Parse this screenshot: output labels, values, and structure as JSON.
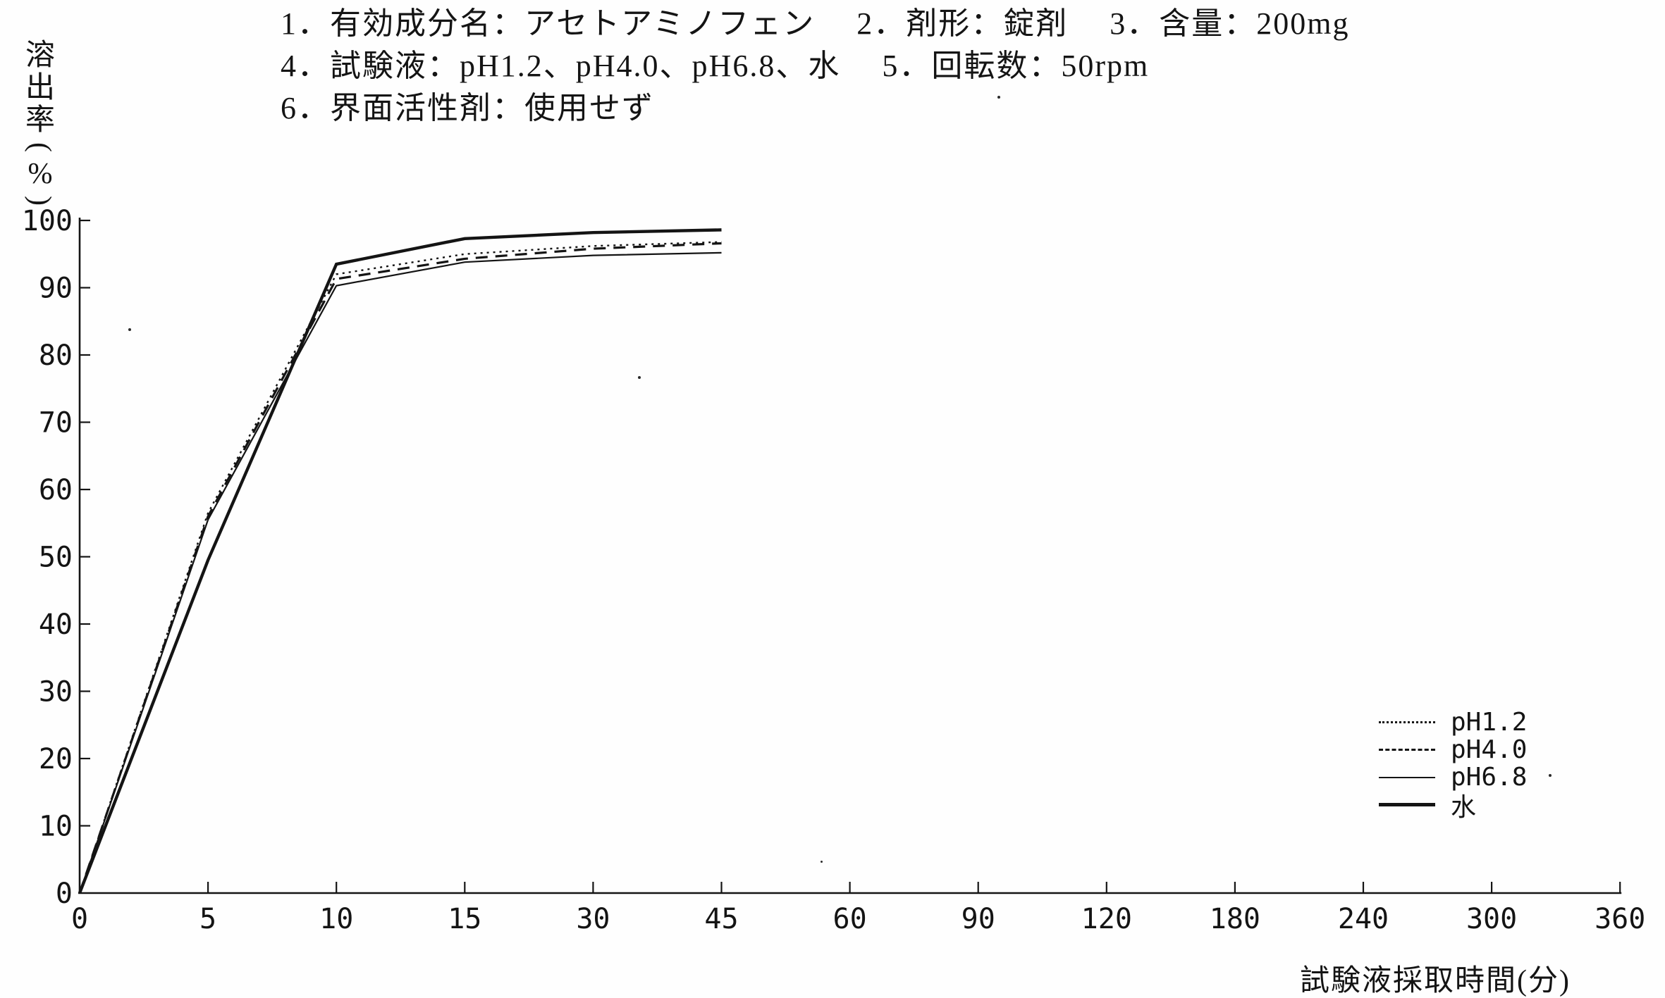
{
  "header": {
    "line1": "1．有効成分名：アセトアミノフェン　 2．剤形：錠剤　 3．含量：200mg",
    "line2": "4．試験液：pH1.2、pH4.0、pH6.8、水　 5．回転数：50rpm",
    "line3": "6．界面活性剤：使用せず"
  },
  "y_axis": {
    "title_chars": [
      "溶",
      "出",
      "率",
      "(",
      "%",
      ")"
    ],
    "tick_labels": [
      "0",
      "10",
      "20",
      "30",
      "40",
      "50",
      "60",
      "70",
      "80",
      "90",
      "100"
    ]
  },
  "x_axis": {
    "title": "試験液採取時間(分)",
    "tick_labels": [
      "0",
      "5",
      "10",
      "15",
      "30",
      "45",
      "60",
      "90",
      "120",
      "180",
      "240",
      "300",
      "360"
    ]
  },
  "legend": {
    "items": [
      {
        "label": "pH1.2",
        "style": "dotted"
      },
      {
        "label": "pH4.0",
        "style": "dashed"
      },
      {
        "label": "pH6.8",
        "style": "thin-solid"
      },
      {
        "label": "水",
        "style": "thick-solid"
      }
    ]
  },
  "chart_data": {
    "type": "line",
    "title": "",
    "xlabel": "試験液採取時間(分)",
    "ylabel": "溶出率(%)",
    "x_categories": [
      0,
      5,
      10,
      15,
      30,
      45,
      60,
      90,
      120,
      180,
      240,
      300,
      360
    ],
    "x_axis_note": "categorical axis - equal spacing between labeled sampling times",
    "y_ticks": [
      0,
      10,
      20,
      30,
      40,
      50,
      60,
      70,
      80,
      90,
      100
    ],
    "ylim": [
      0,
      100
    ],
    "grid": false,
    "legend_position": "right-lower",
    "sample_times_min": [
      0,
      5,
      10,
      15,
      30,
      45
    ],
    "series": [
      {
        "name": "pH1.2",
        "style": "dotted",
        "values": [
          0,
          56.5,
          92.0,
          95.0,
          96.2,
          96.8
        ]
      },
      {
        "name": "pH4.0",
        "style": "dashed",
        "values": [
          0,
          56.0,
          91.3,
          94.3,
          95.8,
          96.6
        ]
      },
      {
        "name": "pH6.8",
        "style": "thin-solid",
        "values": [
          0,
          55.5,
          90.3,
          93.8,
          94.8,
          95.2
        ]
      },
      {
        "name": "水",
        "style": "thick-solid",
        "values": [
          0,
          49.5,
          93.5,
          97.3,
          98.2,
          98.6
        ]
      }
    ]
  }
}
